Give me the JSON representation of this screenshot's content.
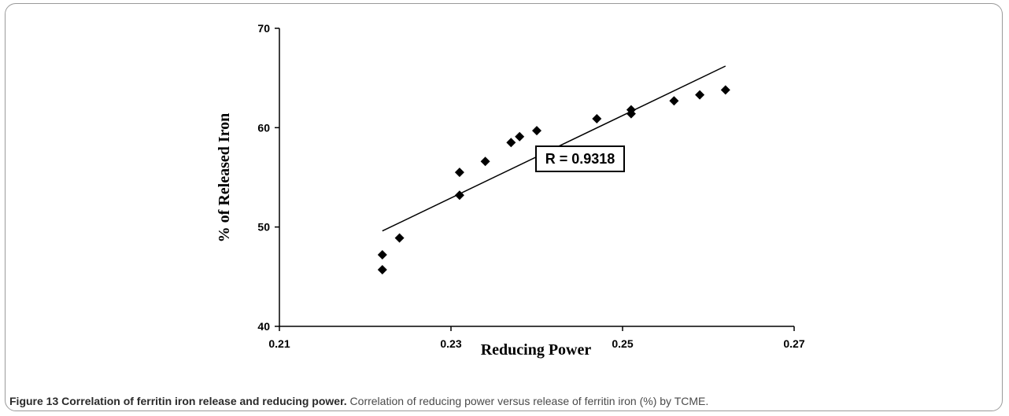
{
  "chart_data": {
    "type": "scatter",
    "xlabel": "Reducing Power",
    "ylabel": "% of Released Iron",
    "xlim": [
      0.21,
      0.27
    ],
    "ylim": [
      40,
      70
    ],
    "xticks": [
      "0.21",
      "0.23",
      "0.25",
      "0.27"
    ],
    "yticks": [
      "40",
      "50",
      "60",
      "70"
    ],
    "grid": false,
    "marker": "diamond",
    "color": "#000000",
    "points": [
      {
        "x": 0.222,
        "y": 45.7
      },
      {
        "x": 0.222,
        "y": 47.2
      },
      {
        "x": 0.224,
        "y": 48.9
      },
      {
        "x": 0.231,
        "y": 53.2
      },
      {
        "x": 0.231,
        "y": 55.5
      },
      {
        "x": 0.234,
        "y": 56.6
      },
      {
        "x": 0.237,
        "y": 58.5
      },
      {
        "x": 0.238,
        "y": 59.1
      },
      {
        "x": 0.24,
        "y": 59.7
      },
      {
        "x": 0.247,
        "y": 60.9
      },
      {
        "x": 0.251,
        "y": 61.4
      },
      {
        "x": 0.251,
        "y": 61.8
      },
      {
        "x": 0.256,
        "y": 62.7
      },
      {
        "x": 0.259,
        "y": 63.3
      },
      {
        "x": 0.262,
        "y": 63.8
      }
    ],
    "trendline": {
      "x": [
        0.222,
        0.262
      ],
      "y": [
        49.6,
        66.2
      ]
    },
    "annotation": "R = 0.9318"
  },
  "caption": {
    "title": "Figure 13 Correlation of ferritin iron release and reducing power.",
    "text": "Correlation of reducing power versus release of ferritin iron (%) by TCME."
  }
}
